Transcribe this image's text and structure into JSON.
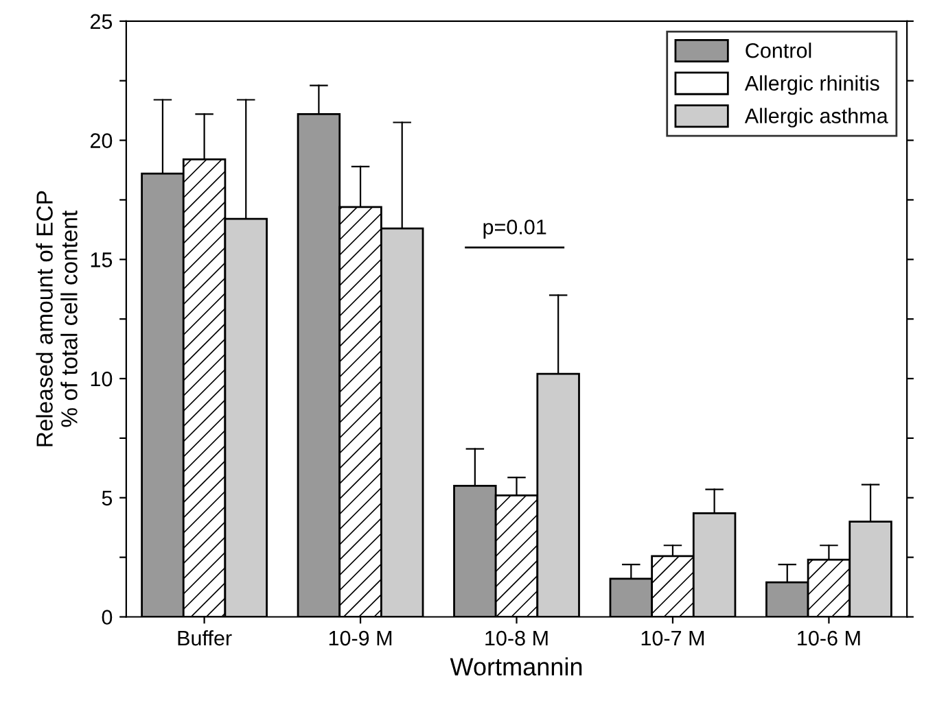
{
  "chart_data": {
    "type": "bar",
    "xlabel": "Wortmannin",
    "ylabel": "Released amount of ECP\n% of total cell content",
    "categories": [
      "Buffer",
      "10-9 M",
      "10-8 M",
      "10-7 M",
      "10-6 M"
    ],
    "series": [
      {
        "name": "Control",
        "color": "#999999",
        "values": [
          18.6,
          21.1,
          5.5,
          1.6,
          1.45
        ],
        "errors": [
          [
            18.6,
            21.7
          ],
          [
            21.1,
            22.3
          ],
          [
            5.5,
            7.05
          ],
          [
            1.6,
            2.2
          ],
          [
            1.45,
            2.2
          ]
        ]
      },
      {
        "name": "Allergic rhinitis",
        "color": "#ffffff",
        "values": [
          19.2,
          17.2,
          5.1,
          2.55,
          2.4
        ],
        "errors": [
          [
            19.2,
            21.1
          ],
          [
            17.2,
            18.9
          ],
          [
            5.1,
            5.85
          ],
          [
            2.55,
            3.0
          ],
          [
            2.4,
            3.0
          ]
        ]
      },
      {
        "name": "Allergic asthma",
        "color": "#cccccc",
        "values": [
          16.7,
          16.3,
          10.2,
          4.35,
          4.0
        ],
        "errors": [
          [
            16.7,
            21.7
          ],
          [
            16.3,
            20.75
          ],
          [
            10.2,
            13.5
          ],
          [
            4.35,
            5.35
          ],
          [
            4.0,
            5.55
          ]
        ]
      }
    ],
    "ylim": [
      0,
      25
    ],
    "yticks": [
      0,
      {
        "value": 2.5,
        "label": null
      },
      5,
      {
        "value": 7.5,
        "label": null
      },
      10,
      {
        "value": 12.5,
        "label": null
      },
      15,
      {
        "value": 17.5,
        "label": null
      },
      20,
      {
        "value": 22.5,
        "label": null
      },
      25
    ],
    "annotations": [
      "p=0.01"
    ],
    "legend": "top right",
    "grid": false
  }
}
